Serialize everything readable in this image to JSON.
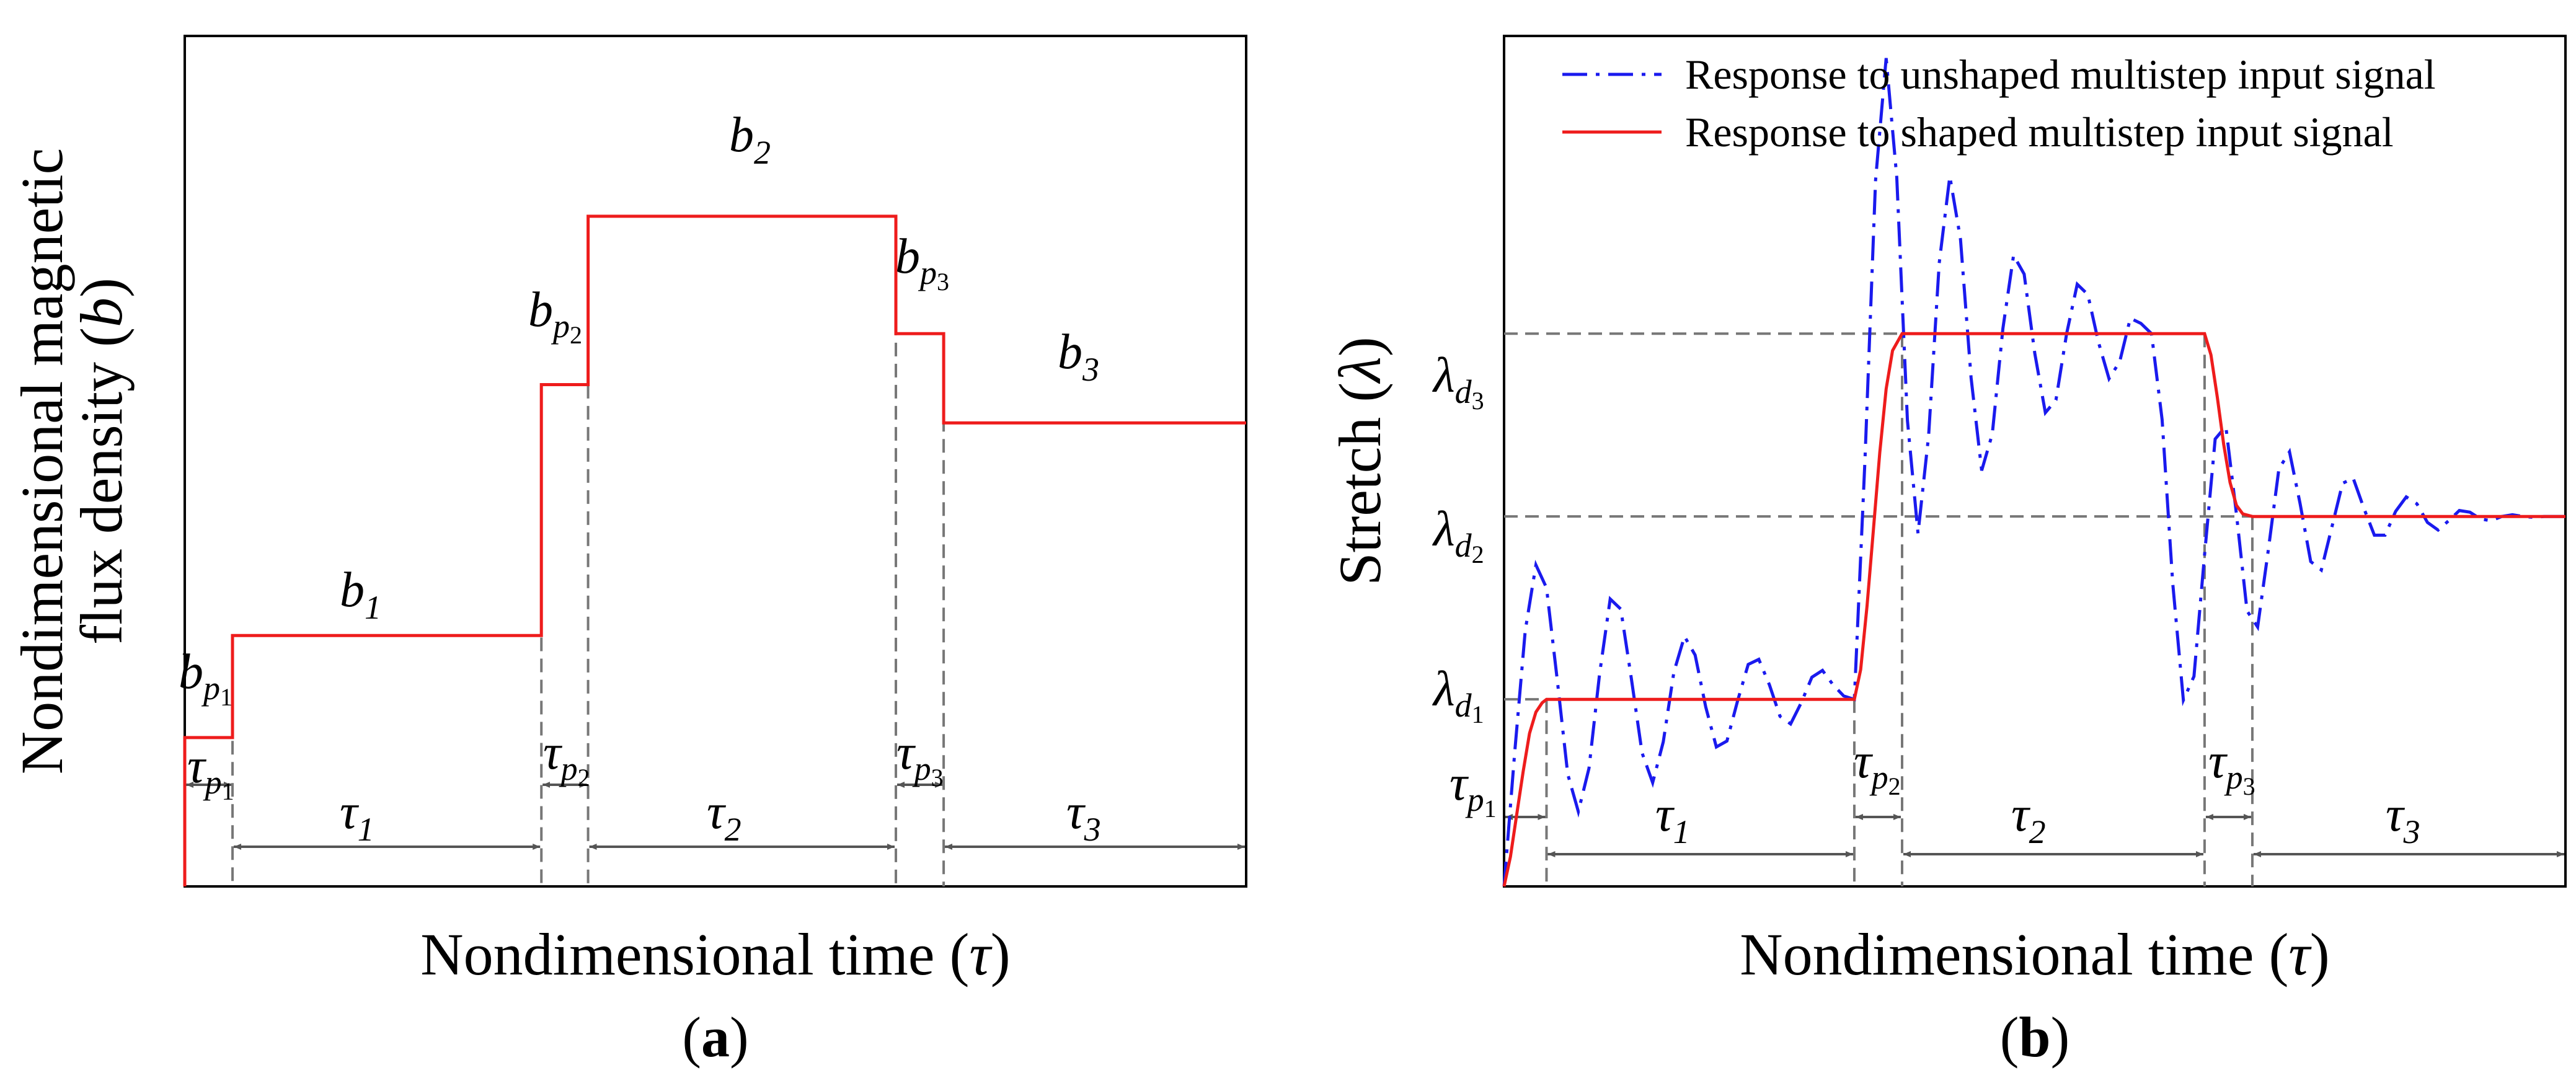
{
  "chart_data": [
    {
      "panel": "a",
      "type": "line",
      "panel_label_open": "(",
      "panel_label": "a",
      "panel_label_close": ")",
      "xlabel": "Nondimensional time (",
      "xlabel_symbol": "τ",
      "xlabel_close": ")",
      "ylabel_line1": "Nondimensional magnetic",
      "ylabel_line2": "flux density (",
      "ylabel_symbol": "b",
      "ylabel_close": ")",
      "xlim": [
        0,
        10
      ],
      "ylim": [
        0,
        10
      ],
      "series": [
        {
          "name": "multistep input signal",
          "color": "#ee1c1c",
          "x": [
            0,
            0,
            0.45,
            0.45,
            3.36,
            3.36,
            3.8,
            3.8,
            6.7,
            6.7,
            7.15,
            7.15,
            10
          ],
          "y": [
            0,
            1.75,
            1.75,
            2.95,
            2.95,
            5.9,
            5.9,
            7.88,
            7.88,
            6.5,
            6.5,
            5.45,
            5.45
          ]
        }
      ],
      "markers": [
        0,
        0.45,
        3.36,
        3.8,
        6.7,
        7.15,
        10
      ],
      "level_labels": [
        {
          "sym": "b",
          "sub": "p",
          "sub2": "1"
        },
        {
          "sym": "b",
          "sub": "1",
          "sub2": ""
        },
        {
          "sym": "b",
          "sub": "p",
          "sub2": "2"
        },
        {
          "sym": "b",
          "sub": "2",
          "sub2": ""
        },
        {
          "sym": "b",
          "sub": "p",
          "sub2": "3"
        },
        {
          "sym": "b",
          "sub": "3",
          "sub2": ""
        }
      ],
      "interval_labels": [
        {
          "sym": "τ",
          "sub": "p",
          "sub2": "1"
        },
        {
          "sym": "τ",
          "sub": "1",
          "sub2": ""
        },
        {
          "sym": "τ",
          "sub": "p",
          "sub2": "2"
        },
        {
          "sym": "τ",
          "sub": "2",
          "sub2": ""
        },
        {
          "sym": "τ",
          "sub": "p",
          "sub2": "3"
        },
        {
          "sym": "τ",
          "sub": "3",
          "sub2": ""
        }
      ]
    },
    {
      "panel": "b",
      "type": "line",
      "panel_label_open": "(",
      "panel_label": "b",
      "panel_label_close": ")",
      "xlabel": "Nondimensional time (",
      "xlabel_symbol": "τ",
      "xlabel_close": ")",
      "ylabel": "Stretch (",
      "ylabel_symbol": "λ",
      "ylabel_close": ")",
      "xlim": [
        0,
        10
      ],
      "ylim": [
        0,
        10
      ],
      "legend": [
        {
          "label": "Response to unshaped multistep input signal",
          "color": "#1a1aee",
          "style": "dash-dot"
        },
        {
          "label": "Response to shaped multistep input signal",
          "color": "#ee1c1c",
          "style": "solid"
        }
      ],
      "levels": {
        "ld1": 2.2,
        "ld2": 4.35,
        "ld3": 6.5
      },
      "level_labels": [
        {
          "sym": "λ",
          "sub": "d",
          "sub2": "1"
        },
        {
          "sym": "λ",
          "sub": "d",
          "sub2": "2"
        },
        {
          "sym": "λ",
          "sub": "d",
          "sub2": "3"
        }
      ],
      "markers": [
        0,
        0.4,
        3.3,
        3.75,
        6.6,
        7.05,
        10
      ],
      "interval_labels": [
        {
          "sym": "τ",
          "sub": "p",
          "sub2": "1"
        },
        {
          "sym": "τ",
          "sub": "1",
          "sub2": ""
        },
        {
          "sym": "τ",
          "sub": "p",
          "sub2": "2"
        },
        {
          "sym": "τ",
          "sub": "2",
          "sub2": ""
        },
        {
          "sym": "τ",
          "sub": "p",
          "sub2": "3"
        },
        {
          "sym": "τ",
          "sub": "3",
          "sub2": ""
        }
      ],
      "series": [
        {
          "name": "Response to shaped multistep input signal",
          "color": "#ee1c1c",
          "x": [
            0,
            0.06,
            0.12,
            0.18,
            0.24,
            0.3,
            0.36,
            0.4,
            3.3,
            3.36,
            3.42,
            3.48,
            3.54,
            3.6,
            3.66,
            3.75,
            6.6,
            6.66,
            6.72,
            6.78,
            6.84,
            6.9,
            6.96,
            7.05,
            10
          ],
          "y": [
            0,
            0.35,
            0.85,
            1.35,
            1.8,
            2.05,
            2.16,
            2.2,
            2.2,
            2.55,
            3.3,
            4.2,
            5.1,
            5.85,
            6.3,
            6.5,
            6.5,
            6.25,
            5.75,
            5.2,
            4.75,
            4.48,
            4.38,
            4.35,
            4.35
          ]
        },
        {
          "name": "Response to unshaped multistep input signal",
          "color": "#1a1aee",
          "x": [
            0,
            0.1,
            0.2,
            0.3,
            0.4,
            0.5,
            0.6,
            0.7,
            0.8,
            0.9,
            1.0,
            1.1,
            1.2,
            1.3,
            1.4,
            1.5,
            1.6,
            1.7,
            1.8,
            1.9,
            2.0,
            2.1,
            2.2,
            2.3,
            2.4,
            2.5,
            2.6,
            2.7,
            2.8,
            2.9,
            3.0,
            3.1,
            3.2,
            3.3,
            3.4,
            3.5,
            3.6,
            3.7,
            3.8,
            3.9,
            4.0,
            4.1,
            4.2,
            4.3,
            4.4,
            4.5,
            4.6,
            4.7,
            4.8,
            4.9,
            5.0,
            5.1,
            5.2,
            5.3,
            5.4,
            5.5,
            5.6,
            5.7,
            5.8,
            5.9,
            6.0,
            6.1,
            6.2,
            6.3,
            6.4,
            6.5,
            6.6,
            6.7,
            6.8,
            6.9,
            7.0,
            7.1,
            7.2,
            7.3,
            7.4,
            7.5,
            7.6,
            7.7,
            7.8,
            7.9,
            8.0,
            8.1,
            8.2,
            8.3,
            8.4,
            8.5,
            8.6,
            8.7,
            8.8,
            8.9,
            9.0,
            9.1,
            9.2,
            9.3,
            9.4,
            9.5,
            9.6,
            9.7,
            9.8,
            9.9,
            10.0
          ],
          "y": [
            0.0,
            1.57,
            3.01,
            3.78,
            3.51,
            2.44,
            1.32,
            0.88,
            1.39,
            2.5,
            3.38,
            3.26,
            2.44,
            1.57,
            1.22,
            1.7,
            2.52,
            2.94,
            2.72,
            2.11,
            1.64,
            1.71,
            2.18,
            2.61,
            2.67,
            2.37,
            2.0,
            1.91,
            2.16,
            2.46,
            2.54,
            2.37,
            2.24,
            2.2,
            5.01,
            8.3,
            9.74,
            8.34,
            5.48,
            4.15,
            5.3,
            7.33,
            8.35,
            7.61,
            5.98,
            4.89,
            5.32,
            6.56,
            7.42,
            7.2,
            6.27,
            5.57,
            5.72,
            6.5,
            7.08,
            6.96,
            6.4,
            5.97,
            6.17,
            6.68,
            6.62,
            6.5,
            5.49,
            3.56,
            2.19,
            2.47,
            3.9,
            5.26,
            5.41,
            4.38,
            3.24,
            3.05,
            3.95,
            4.91,
            5.11,
            4.5,
            3.82,
            3.72,
            4.23,
            4.74,
            4.8,
            4.45,
            4.13,
            4.13,
            4.41,
            4.58,
            4.5,
            4.28,
            4.19,
            4.3,
            4.42,
            4.4,
            4.32,
            4.3,
            4.35,
            4.37,
            4.35,
            4.34,
            4.35,
            4.35,
            4.35
          ]
        }
      ]
    }
  ]
}
